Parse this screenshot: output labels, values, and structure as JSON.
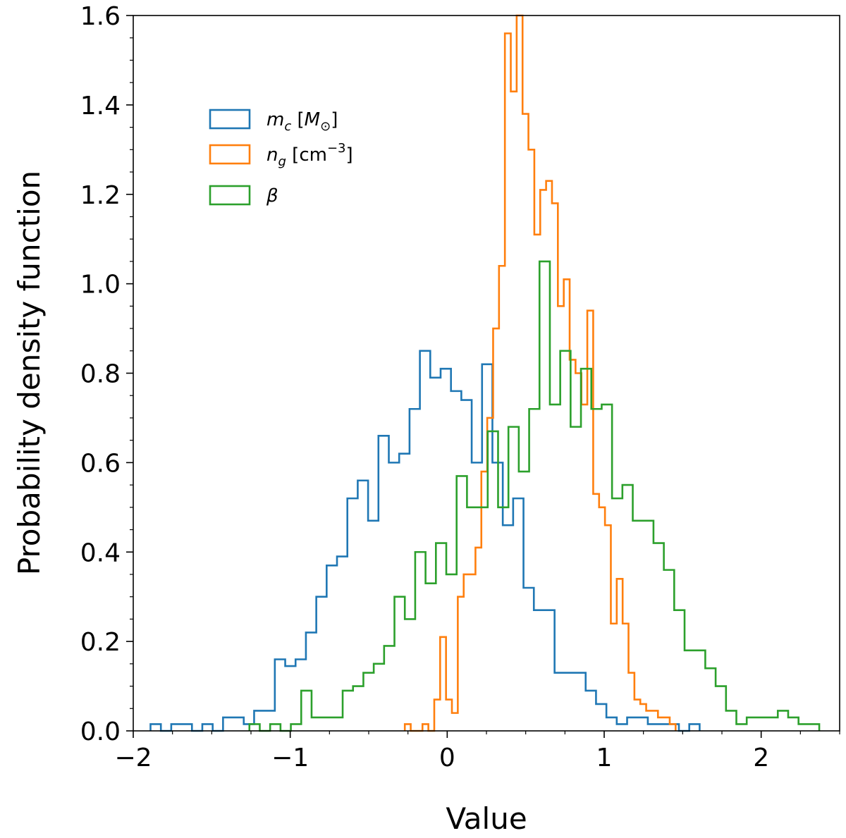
{
  "chart_data": {
    "type": "histogram",
    "xlabel": "Value",
    "ylabel": "Probability density function",
    "xlim": [
      -2.0,
      2.5
    ],
    "ylim": [
      0.0,
      1.6
    ],
    "x_ticks": [
      -2,
      -1,
      0,
      1,
      2
    ],
    "x_tick_labels": [
      "−2",
      "−1",
      "0",
      "1",
      "2"
    ],
    "y_ticks": [
      0.0,
      0.2,
      0.4,
      0.6,
      0.8,
      1.0,
      1.2,
      1.4,
      1.6
    ],
    "y_tick_labels": [
      "0.0",
      "0.2",
      "0.4",
      "0.6",
      "0.8",
      "1.0",
      "1.2",
      "1.4",
      "1.6"
    ],
    "grid": false,
    "legend_position": "upper-left",
    "series": [
      {
        "name": "m_c [M_⊙]",
        "name_parts": {
          "sym": "m",
          "sub": "c",
          "pre": " [",
          "unit_sym": "M",
          "unit_sub": "⊙",
          "post": "]"
        },
        "color": "#1f77b4",
        "x_start": -1.89,
        "bin_width": 0.066,
        "values": [
          0.015,
          0.0,
          0.015,
          0.015,
          0.0,
          0.015,
          0.0,
          0.03,
          0.03,
          0.015,
          0.045,
          0.045,
          0.16,
          0.145,
          0.16,
          0.22,
          0.3,
          0.37,
          0.39,
          0.52,
          0.56,
          0.47,
          0.66,
          0.6,
          0.62,
          0.72,
          0.85,
          0.79,
          0.81,
          0.76,
          0.74,
          0.6,
          0.82,
          0.6,
          0.46,
          0.52,
          0.32,
          0.27,
          0.27,
          0.13,
          0.13,
          0.13,
          0.09,
          0.06,
          0.03,
          0.015,
          0.03,
          0.03,
          0.015,
          0.015,
          0.015,
          0.0,
          0.015
        ]
      },
      {
        "name": "n_g [cm^-3]",
        "name_parts": {
          "sym": "n",
          "sub": "g",
          "pre": " [cm",
          "sup": "−3",
          "post": "]"
        },
        "color": "#ff7f0e",
        "x_start": -0.27,
        "bin_width": 0.0375,
        "values": [
          0.015,
          0.0,
          0.0,
          0.015,
          0.0,
          0.07,
          0.21,
          0.07,
          0.04,
          0.3,
          0.35,
          0.35,
          0.41,
          0.58,
          0.7,
          0.9,
          1.04,
          1.56,
          1.43,
          1.6,
          1.38,
          1.3,
          1.11,
          1.21,
          1.23,
          1.18,
          0.95,
          1.01,
          0.83,
          0.8,
          0.73,
          0.94,
          0.53,
          0.5,
          0.46,
          0.24,
          0.34,
          0.24,
          0.13,
          0.07,
          0.06,
          0.045,
          0.045,
          0.03,
          0.03,
          0.015
        ]
      },
      {
        "name": "β",
        "name_parts": {
          "sym": "β"
        },
        "color": "#2ca02c",
        "x_start": -1.26,
        "bin_width": 0.066,
        "values": [
          0.015,
          0.0,
          0.015,
          0.0,
          0.015,
          0.09,
          0.03,
          0.03,
          0.03,
          0.09,
          0.1,
          0.13,
          0.15,
          0.19,
          0.3,
          0.25,
          0.4,
          0.33,
          0.42,
          0.35,
          0.57,
          0.5,
          0.5,
          0.67,
          0.5,
          0.68,
          0.58,
          0.72,
          1.05,
          0.73,
          0.85,
          0.68,
          0.81,
          0.72,
          0.73,
          0.52,
          0.55,
          0.47,
          0.47,
          0.42,
          0.36,
          0.27,
          0.18,
          0.18,
          0.14,
          0.1,
          0.045,
          0.015,
          0.03,
          0.03,
          0.03,
          0.045,
          0.03,
          0.015,
          0.015
        ]
      }
    ]
  }
}
